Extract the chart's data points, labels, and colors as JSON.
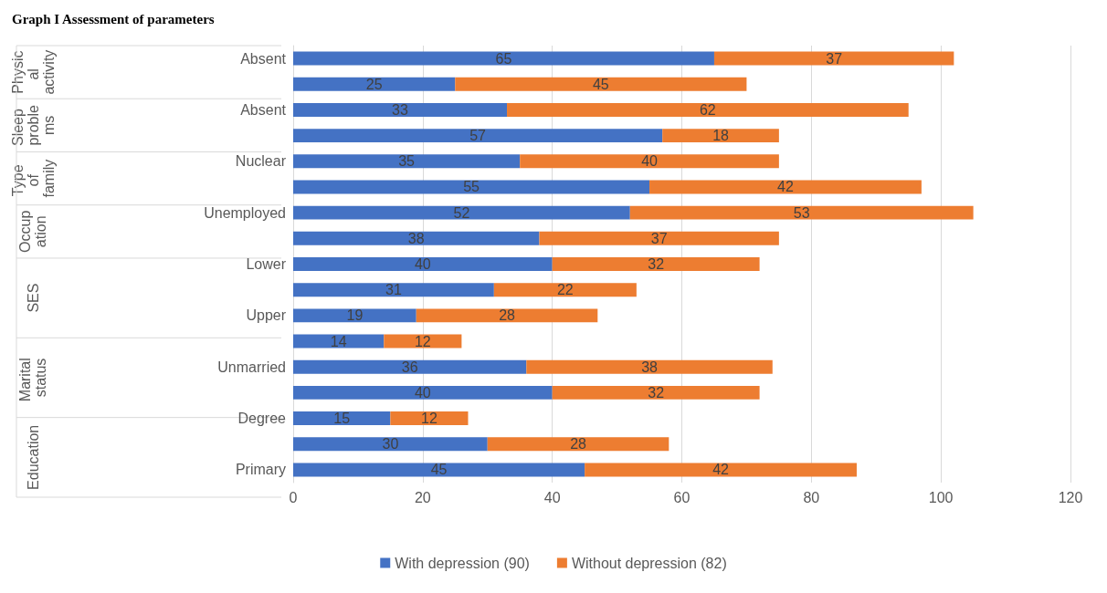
{
  "chart_data": {
    "type": "bar",
    "orientation": "horizontal",
    "stacked": true,
    "title": "Graph I Assessment of parameters",
    "categories": [
      "Absent",
      null,
      "Absent",
      null,
      "Nuclear",
      null,
      "Unemployed",
      null,
      "Lower",
      null,
      "Upper",
      null,
      "Unmarried",
      null,
      "Degree",
      null,
      "Primary"
    ],
    "series": [
      {
        "name": "With depression (90)",
        "color": "#4472c4",
        "values": [
          65,
          25,
          33,
          57,
          35,
          55,
          52,
          38,
          40,
          31,
          19,
          14,
          36,
          40,
          15,
          30,
          45
        ]
      },
      {
        "name": "Without depression (82)",
        "color": "#ed7d31",
        "values": [
          37,
          45,
          62,
          18,
          40,
          42,
          53,
          37,
          32,
          22,
          28,
          12,
          38,
          32,
          12,
          28,
          42
        ]
      }
    ],
    "annotations": [
      "Physical activity",
      "Sleep problems",
      "Type of family",
      "Occupation",
      "SES",
      "Marital status",
      "Education"
    ],
    "xlim": [
      0,
      120
    ],
    "xticks": [
      0,
      20,
      40,
      60,
      80,
      100,
      120
    ],
    "grid": "x",
    "legend": "bottom",
    "data_labels": true
  }
}
